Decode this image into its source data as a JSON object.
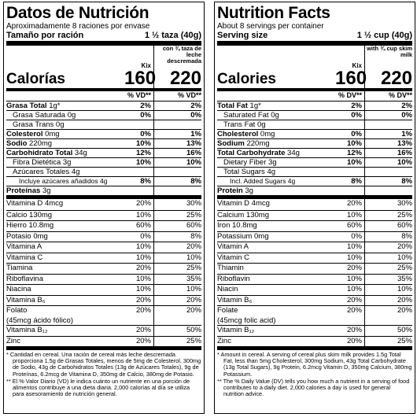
{
  "labels": [
    {
      "title": "Datos de Nutrición",
      "servings": "Aproximadamente 8 raciones por envase",
      "serving_size_label": "Tamaño por ración",
      "serving_size_value": "1 ½ taza (40g)",
      "col1": "Kix",
      "col2": "con ¾ taza de leche descremada",
      "calories_label": "Calorías",
      "calories1": "160",
      "calories2": "220",
      "dv_header1": "% VD**",
      "dv_header2": "% VD**",
      "nutrients": [
        {
          "name": "Grasa Total",
          "amount": "1g*",
          "dv1": "2%",
          "dv2": "2%"
        },
        {
          "name": "Grasa Saturada",
          "amount": "0g",
          "dv1": "0%",
          "dv2": "0%"
        },
        {
          "name": "Grasa Trans",
          "amount": "0g"
        },
        {
          "name": "Colesterol",
          "amount": "0mg",
          "dv1": "0%",
          "dv2": "1%"
        },
        {
          "name": "Sodio",
          "amount": "220mg",
          "dv1": "10%",
          "dv2": "13%"
        },
        {
          "name": "Carbohidrato Total",
          "amount": "34g",
          "dv1": "12%",
          "dv2": "16%"
        },
        {
          "name": "Fibra Dietética",
          "amount": "3g",
          "dv1": "10%",
          "dv2": "10%"
        },
        {
          "name": "Azúcares Totales",
          "amount": "4g"
        },
        {
          "name": "Incluye azúcares añadidos 4g",
          "dv1": "8%",
          "dv2": "8%"
        },
        {
          "name": "Proteínas",
          "amount": "3g"
        }
      ],
      "vitamins": [
        {
          "name": "Vitamina D",
          "amount": "4mcg",
          "dv1": "20%",
          "dv2": "30%"
        },
        {
          "name": "Calcio",
          "amount": "130mg",
          "dv1": "10%",
          "dv2": "25%"
        },
        {
          "name": "Hierro",
          "amount": "10.8mg",
          "dv1": "60%",
          "dv2": "60%"
        },
        {
          "name": "Potasio",
          "amount": "0mg",
          "dv1": "0%",
          "dv2": "8%"
        },
        {
          "name": "Vitamina A",
          "dv1": "10%",
          "dv2": "20%"
        },
        {
          "name": "Vitamina C",
          "dv1": "10%",
          "dv2": "10%"
        },
        {
          "name": "Tiamina",
          "dv1": "20%",
          "dv2": "25%"
        },
        {
          "name": "Riboflavina",
          "dv1": "10%",
          "dv2": "35%"
        },
        {
          "name": "Niacina",
          "dv1": "10%",
          "dv2": "10%"
        },
        {
          "name": "Vitamina B₆",
          "dv1": "20%",
          "dv2": "20%"
        },
        {
          "name": "Folato",
          "amount": "(45mcg ácido fólico)",
          "dv1": "20%",
          "dv2": "20%"
        },
        {
          "name": "Vitamina B₁₂",
          "dv1": "20%",
          "dv2": "50%"
        },
        {
          "name": "Zinc",
          "dv1": "20%",
          "dv2": "25%"
        }
      ],
      "footnotes": [
        "* Cantidad en cereal. Una ración de cereal más leche descremada proporciona 1.5g de Grasas Totales, menos de 5mg de Colesterol, 300mg de Sodio, 43g de Carbohidratos Totales (13g de Azúcares Totales), 9g de Proteínas, 6.2mcg de Vitamina D, 350mg de Calcio, 380mg de Potasio.",
        "** El % Valor Diario (VD) le indica cuánto un nutriente en una porción de alimentos contribuye a una dieta diaria. 2,000 calorías al día se utiliza para asesoramiento de nutrición general."
      ]
    },
    {
      "title": "Nutrition Facts",
      "servings": "About 8 servings per container",
      "serving_size_label": "Serving size",
      "serving_size_value": "1 ½ cup (40g)",
      "col1": "Kix",
      "col2": "with ¾ cup skim milk",
      "calories_label": "Calories",
      "calories1": "160",
      "calories2": "220",
      "dv_header1": "% DV**",
      "dv_header2": "% DV**",
      "nutrients": [
        {
          "name": "Total Fat",
          "amount": "1g*",
          "dv1": "2%",
          "dv2": "2%"
        },
        {
          "name": "Saturated Fat",
          "amount": "0g",
          "dv1": "0%",
          "dv2": "0%"
        },
        {
          "name": "Trans Fat",
          "amount": "0g"
        },
        {
          "name": "Cholesterol",
          "amount": "0mg",
          "dv1": "0%",
          "dv2": "1%"
        },
        {
          "name": "Sodium",
          "amount": "220mg",
          "dv1": "10%",
          "dv2": "13%"
        },
        {
          "name": "Total Carbohydrate",
          "amount": "34g",
          "dv1": "12%",
          "dv2": "16%"
        },
        {
          "name": "Dietary Fiber",
          "amount": "3g",
          "dv1": "10%",
          "dv2": "10%"
        },
        {
          "name": "Total Sugars",
          "amount": "4g"
        },
        {
          "name": "Incl. Added Sugars 4g",
          "dv1": "8%",
          "dv2": "8%"
        },
        {
          "name": "Protein",
          "amount": "3g"
        }
      ],
      "vitamins": [
        {
          "name": "Vitamin D",
          "amount": "4mcg",
          "dv1": "20%",
          "dv2": "30%"
        },
        {
          "name": "Calcium",
          "amount": "130mg",
          "dv1": "10%",
          "dv2": "25%"
        },
        {
          "name": "Iron",
          "amount": "10.8mg",
          "dv1": "60%",
          "dv2": "60%"
        },
        {
          "name": "Potassium",
          "amount": "0mg",
          "dv1": "0%",
          "dv2": "8%"
        },
        {
          "name": "Vitamin A",
          "dv1": "10%",
          "dv2": "20%"
        },
        {
          "name": "Vitamin C",
          "dv1": "10%",
          "dv2": "10%"
        },
        {
          "name": "Thiamin",
          "dv1": "20%",
          "dv2": "25%"
        },
        {
          "name": "Riboflavin",
          "dv1": "10%",
          "dv2": "35%"
        },
        {
          "name": "Niacin",
          "dv1": "10%",
          "dv2": "10%"
        },
        {
          "name": "Vitamin B₆",
          "dv1": "20%",
          "dv2": "20%"
        },
        {
          "name": "Folate",
          "amount": "(45mcg folic acid)",
          "dv1": "20%",
          "dv2": "20%"
        },
        {
          "name": "Vitamin B₁₂",
          "dv1": "20%",
          "dv2": "50%"
        },
        {
          "name": "Zinc",
          "dv1": "20%",
          "dv2": "25%"
        }
      ],
      "footnotes": [
        "* Amount in cereal. A serving of cereal plus skim milk provides 1.5g Total Fat, less than 5mg Cholesterol, 300mg Sodium, 43g Total Carbohydrate (13g Total Sugars), 9g Protein, 6.2mcg Vitamin D, 350mg Calcium, 380mg Potassium.",
        "** The % Daily Value (DV) tells you how much a nutrient in a serving of food contributes to a daily diet. 2,000 calories a day is used for general nutrition advice."
      ]
    }
  ]
}
